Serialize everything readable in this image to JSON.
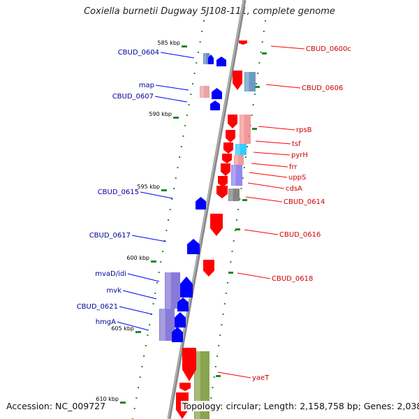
{
  "title": "Coxiella burnetii Dugway 5J108-111, complete genome",
  "accession": "Accession: NC_009727",
  "topology": "Topology: circular; Length: 2,158,758 bp; Genes: 2,038",
  "colors": {
    "forward_gene": "#ff0000",
    "reverse_gene": "#0000ff",
    "forward_label": "#cc0000",
    "reverse_label": "#000099",
    "backbone": "#888888",
    "ticks": "#228822"
  },
  "scale": {
    "unit": "kbp",
    "markers": [
      {
        "text": "585 kbp"
      },
      {
        "text": "590 kbp"
      },
      {
        "text": "595 kbp"
      },
      {
        "text": "600 kbp"
      },
      {
        "text": "605 kbp"
      },
      {
        "text": "610 kbp"
      }
    ]
  },
  "genes_reverse": [
    {
      "name": "CBUD_0604",
      "row": "A",
      "shade": "tall",
      "fill": "#4a6fb5"
    },
    {
      "name": "map",
      "row": "B",
      "shade": "pink",
      "fill": "#e88c8c"
    },
    {
      "name": "CBUD_0607",
      "row": "C",
      "shade": "none",
      "fill": "#0000ff"
    },
    {
      "name": "CBUD_0615",
      "row": "D",
      "shade": "none",
      "fill": "#0000ff"
    },
    {
      "name": "CBUD_0617",
      "row": "E",
      "shade": "none",
      "fill": "#0000ff"
    },
    {
      "name": "mvaD/idi",
      "row": "F",
      "shade": "purple",
      "fill": "#6a5acd"
    },
    {
      "name": "mvk",
      "row": "G",
      "shade": "purple",
      "fill": "#6a5acd"
    },
    {
      "name": "CBUD_0621",
      "row": "H",
      "shade": "purple",
      "fill": "#6a5acd"
    },
    {
      "name": "hmgA",
      "row": "I",
      "shade": "purple",
      "fill": "#6a5acd"
    }
  ],
  "genes_forward": [
    {
      "name": "CBUD_0600c",
      "fill": "#ff0000"
    },
    {
      "name": "CBUD_0606",
      "fill": "#4682b4"
    },
    {
      "name": "rpsB",
      "fill": "#f08080"
    },
    {
      "name": "tsf",
      "fill": "#f08080"
    },
    {
      "name": "pyrH",
      "fill": "#00bfff"
    },
    {
      "name": "frr",
      "fill": "#f08080"
    },
    {
      "name": "uppS",
      "fill": "#7b68ee"
    },
    {
      "name": "cdsA",
      "fill": "#666666"
    },
    {
      "name": "CBUD_0614",
      "fill": "#666666"
    },
    {
      "name": "CBUD_0616",
      "fill": "#ff0000"
    },
    {
      "name": "CBUD_0618",
      "fill": "#ff0000"
    },
    {
      "name": "yaeT",
      "fill": "#6b8e23"
    }
  ]
}
